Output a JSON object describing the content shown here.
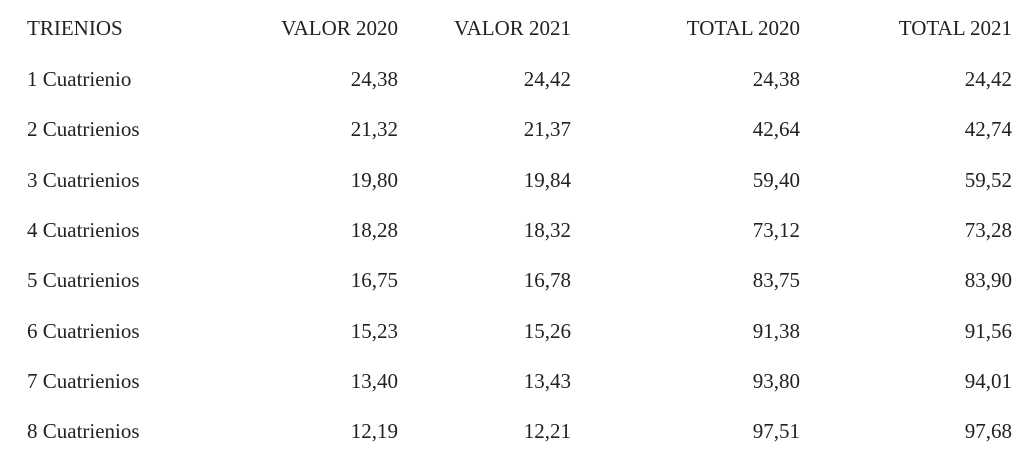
{
  "table": {
    "header": [
      "TRIENIOS",
      "VALOR 2020",
      "VALOR 2021",
      "TOTAL 2020",
      "TOTAL 2021"
    ],
    "rows": [
      [
        "1 Cuatrienio",
        "24,38",
        "24,42",
        "24,38",
        "24,42"
      ],
      [
        "2 Cuatrienios",
        "21,32",
        "21,37",
        "42,64",
        "42,74"
      ],
      [
        "3 Cuatrienios",
        "19,80",
        "19,84",
        "59,40",
        "59,52"
      ],
      [
        "4 Cuatrienios",
        "18,28",
        "18,32",
        "73,12",
        "73,28"
      ],
      [
        "5 Cuatrienios",
        "16,75",
        "16,78",
        "83,75",
        "83,90"
      ],
      [
        "6 Cuatrienios",
        "15,23",
        "15,26",
        "91,38",
        "91,56"
      ],
      [
        "7 Cuatrienios",
        "13,40",
        "13,43",
        "93,80",
        "94,01"
      ],
      [
        "8 Cuatrienios",
        "12,19",
        "12,21",
        "97,51",
        "97,68"
      ]
    ]
  }
}
